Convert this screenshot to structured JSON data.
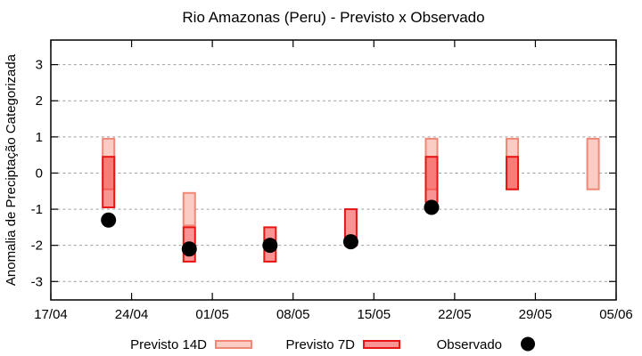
{
  "title": "Rio Amazonas (Peru) - Previsto x Observado",
  "chart_data": {
    "type": "candlestick",
    "title": "Rio Amazonas (Peru) - Previsto x Observado",
    "ylabel": "Anomalia de Preciptação Categorizada",
    "xlabel": "",
    "grid": "horizontal-dashed",
    "x_axis": {
      "tick_labels": [
        "17/04",
        "24/04",
        "01/05",
        "08/05",
        "15/05",
        "22/05",
        "29/05",
        "05/06"
      ],
      "tick_days": [
        0,
        7,
        14,
        21,
        28,
        35,
        42,
        49
      ],
      "range_days": [
        0,
        49
      ]
    },
    "y_axis": {
      "ticks": [
        3,
        2,
        1,
        0,
        -1,
        -2,
        -3
      ],
      "tick_labels": [
        "3",
        "2",
        "1",
        "0",
        "-1",
        "-2",
        "-3"
      ],
      "range": [
        -3.51,
        3.68
      ]
    },
    "legend": {
      "position": "bottom",
      "items": [
        {
          "label": "Previsto 14D",
          "marker": "box-light-pink"
        },
        {
          "label": "Previsto 7D",
          "marker": "box-red"
        },
        {
          "label": "Observado",
          "marker": "black-dot"
        }
      ]
    },
    "series": {
      "previsto_14d": [
        {
          "date": "22/04",
          "day": 5,
          "low": -0.45,
          "high": 0.95
        },
        {
          "date": "29/04",
          "day": 12,
          "low": -1.45,
          "high": -0.55
        },
        {
          "date": "20/05",
          "day": 33,
          "low": -0.45,
          "high": 0.95
        },
        {
          "date": "27/05",
          "day": 40,
          "low": -0.45,
          "high": 0.95
        },
        {
          "date": "03/06",
          "day": 47,
          "low": -0.45,
          "high": 0.95
        }
      ],
      "previsto_7d": [
        {
          "date": "22/04",
          "day": 5,
          "low": -0.95,
          "high": 0.45
        },
        {
          "date": "29/04",
          "day": 12,
          "low": -2.45,
          "high": -1.5
        },
        {
          "date": "06/05",
          "day": 19,
          "low": -2.45,
          "high": -1.5
        },
        {
          "date": "13/05",
          "day": 26,
          "low": -2.0,
          "high": -1.0
        },
        {
          "date": "20/05",
          "day": 33,
          "low": -0.8,
          "high": 0.45
        },
        {
          "date": "27/05",
          "day": 40,
          "low": -0.45,
          "high": 0.45
        }
      ],
      "observado": [
        {
          "date": "22/04",
          "day": 5,
          "value": -1.3
        },
        {
          "date": "29/04",
          "day": 12,
          "value": -2.1
        },
        {
          "date": "06/05",
          "day": 19,
          "value": -2.0
        },
        {
          "date": "13/05",
          "day": 26,
          "value": -1.9
        },
        {
          "date": "20/05",
          "day": 33,
          "value": -0.95
        }
      ]
    },
    "colors": {
      "previsto_14d_fill": "#fbccc4",
      "previsto_14d_border": "#f08878",
      "previsto_7d_fill": "rgba(246,60,60,0.55)",
      "previsto_7d_border": "#e81515",
      "observado": "#000000",
      "grid": "#9e9e9e",
      "axis": "#000000"
    }
  }
}
